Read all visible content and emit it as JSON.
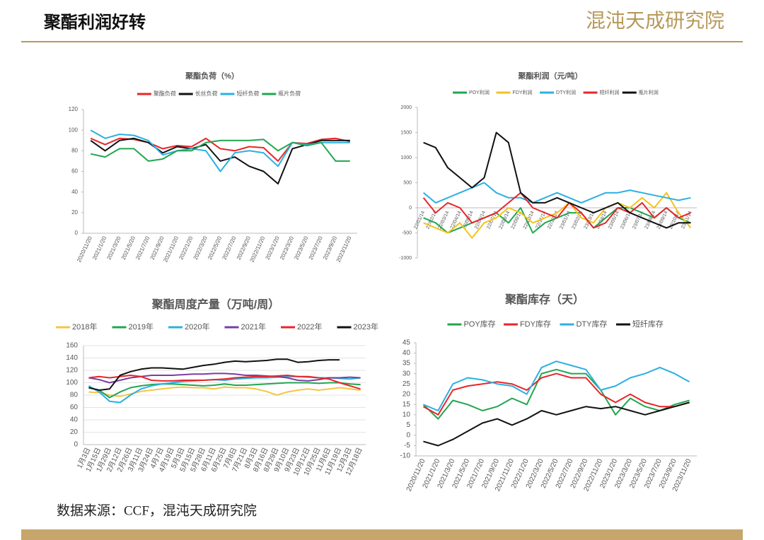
{
  "header": {
    "title": "聚酯利润好转",
    "brand": "混沌天成研究院"
  },
  "source": "数据来源：CCF，混沌天成研究院",
  "chart_data": [
    {
      "type": "line",
      "title": "聚酯负荷（%）",
      "grid": false,
      "categories": [
        "2020/11/20",
        "2021/1/20",
        "2021/3/20",
        "2021/5/20",
        "2021/7/20",
        "2021/9/20",
        "2021/11/20",
        "2022/1/20",
        "2022/3/20",
        "2022/5/20",
        "2022/7/20",
        "2022/9/20",
        "2022/11/20",
        "2023/1/20",
        "2023/3/20",
        "2023/5/20",
        "2023/7/20",
        "2023/9/20",
        "2023/11/20"
      ],
      "ylim": [
        0,
        120
      ],
      "yticks": [
        0,
        20,
        40,
        60,
        80,
        100,
        120
      ],
      "series": [
        {
          "name": "聚酯负荷",
          "color": "#e8262a",
          "values": [
            92,
            86,
            92,
            91,
            88,
            82,
            85,
            84,
            92,
            82,
            80,
            84,
            83,
            70,
            88,
            87,
            91,
            92,
            89
          ]
        },
        {
          "name": "长丝负荷",
          "color": "#111111",
          "values": [
            90,
            80,
            90,
            92,
            88,
            78,
            84,
            82,
            86,
            70,
            74,
            65,
            60,
            48,
            82,
            86,
            90,
            90,
            90
          ]
        },
        {
          "name": "短纤负荷",
          "color": "#2bb0e3",
          "values": [
            100,
            92,
            96,
            95,
            90,
            76,
            80,
            82,
            80,
            60,
            78,
            80,
            78,
            65,
            88,
            86,
            88,
            88,
            88
          ]
        },
        {
          "name": "瓶片负荷",
          "color": "#21a650",
          "values": [
            77,
            74,
            82,
            82,
            70,
            72,
            80,
            80,
            88,
            90,
            90,
            90,
            91,
            80,
            88,
            85,
            88,
            70,
            70
          ]
        }
      ]
    },
    {
      "type": "line",
      "title": "聚酯利润（元/吨）",
      "grid": false,
      "categories": [
        "22/01/14",
        "22/02/14",
        "22/03/14",
        "22/04/14",
        "22/05/14",
        "22/06/14",
        "22/07/14",
        "22/08/14",
        "22/09/14",
        "22/10/14",
        "22/11/14",
        "22/12/14",
        "23/01/14",
        "23/02/14",
        "23/03/14",
        "23/04/14",
        "23/05/14",
        "23/06/14",
        "23/07/14",
        "23/08/14",
        "23/09/14",
        "23/10/14",
        "23/11/14"
      ],
      "ylim": [
        -1000,
        2000
      ],
      "yticks": [
        -1000,
        -500,
        0,
        500,
        1000,
        1500,
        2000
      ],
      "series": [
        {
          "name": "POY利润",
          "color": "#21a650",
          "values": [
            -200,
            -300,
            -500,
            -400,
            -300,
            -200,
            -100,
            -300,
            0,
            -500,
            -300,
            -200,
            -100,
            -100,
            -400,
            -200,
            0,
            0,
            -100,
            -200,
            0,
            -200,
            -300
          ]
        },
        {
          "name": "FDY利润",
          "color": "#f5c21b",
          "values": [
            -300,
            -400,
            -500,
            -300,
            -600,
            -300,
            -200,
            0,
            -100,
            -300,
            -200,
            -100,
            100,
            -200,
            -300,
            0,
            100,
            0,
            200,
            0,
            300,
            -100,
            -400
          ]
        },
        {
          "name": "DTY利润",
          "color": "#2bb0e3",
          "values": [
            300,
            100,
            200,
            300,
            400,
            500,
            300,
            200,
            200,
            100,
            200,
            300,
            200,
            100,
            200,
            300,
            300,
            350,
            300,
            250,
            200,
            150,
            200
          ]
        },
        {
          "name": "短纤利润",
          "color": "#e8262a",
          "values": [
            200,
            -100,
            100,
            0,
            -300,
            -200,
            -100,
            100,
            300,
            0,
            -100,
            -200,
            100,
            -100,
            -400,
            -300,
            0,
            -100,
            100,
            -200,
            0,
            -200,
            -100
          ]
        },
        {
          "name": "瓶片利润",
          "color": "#111111",
          "values": [
            1300,
            1200,
            800,
            600,
            400,
            600,
            1500,
            1300,
            300,
            100,
            100,
            200,
            100,
            0,
            -100,
            0,
            100,
            -100,
            -200,
            -300,
            -400,
            -300,
            -300
          ]
        }
      ]
    },
    {
      "type": "line",
      "title": "聚酯周度产量（万吨/周）",
      "grid": true,
      "categories": [
        "1月3日",
        "1月15日",
        "1月29日",
        "2月12日",
        "2月26日",
        "3月11日",
        "3月24日",
        "4月7日",
        "4月19日",
        "5月3日",
        "5月15日",
        "5月28日",
        "6月11日",
        "6月25日",
        "7月8日",
        "7月21日",
        "8月3日",
        "8月16日",
        "8月29日",
        "9月10日",
        "9月23日",
        "10月12日",
        "10月25日",
        "11月6日",
        "11月19日",
        "12月3日",
        "12月18日"
      ],
      "ylim": [
        0,
        160
      ],
      "yticks": [
        0,
        20,
        40,
        60,
        80,
        100,
        120,
        140,
        160
      ],
      "series": [
        {
          "name": "2018年",
          "color": "#f5c542",
          "values": [
            85,
            84,
            80,
            78,
            82,
            86,
            88,
            90,
            92,
            93,
            92,
            92,
            90,
            93,
            92,
            92,
            90,
            86,
            80,
            85,
            88,
            90,
            88,
            90,
            92,
            90,
            88
          ]
        },
        {
          "name": "2019年",
          "color": "#21a650",
          "values": [
            92,
            88,
            76,
            85,
            92,
            95,
            97,
            98,
            98,
            97,
            96,
            95,
            96,
            98,
            96,
            96,
            97,
            98,
            99,
            100,
            100,
            100,
            99,
            100,
            100,
            98,
            97
          ]
        },
        {
          "name": "2020年",
          "color": "#2bb0e3",
          "values": [
            95,
            85,
            70,
            68,
            80,
            90,
            95,
            98,
            100,
            102,
            103,
            104,
            105,
            104,
            106,
            107,
            108,
            108,
            109,
            110,
            110,
            109,
            108,
            108,
            107,
            106,
            108
          ]
        },
        {
          "name": "2021年",
          "color": "#7a3fa0",
          "values": [
            108,
            105,
            100,
            104,
            108,
            110,
            112,
            112,
            112,
            113,
            114,
            114,
            115,
            115,
            114,
            112,
            112,
            111,
            110,
            108,
            104,
            103,
            105,
            108,
            108,
            109,
            108
          ]
        },
        {
          "name": "2022年",
          "color": "#e8262a",
          "values": [
            108,
            110,
            108,
            110,
            112,
            110,
            104,
            103,
            103,
            104,
            104,
            104,
            105,
            106,
            108,
            109,
            110,
            110,
            111,
            112,
            110,
            110,
            108,
            106,
            100,
            95,
            90
          ]
        },
        {
          "name": "2023年",
          "color": "#111111",
          "values": [
            92,
            88,
            90,
            112,
            118,
            122,
            124,
            124,
            123,
            122,
            125,
            128,
            130,
            133,
            135,
            134,
            135,
            136,
            138,
            138,
            133,
            134,
            136,
            137,
            137,
            null,
            null
          ]
        }
      ]
    },
    {
      "type": "line",
      "title": "聚酯库存（天）",
      "grid": false,
      "categories": [
        "2020/11/20",
        "2021/1/20",
        "2021/3/20",
        "2021/5/20",
        "2021/7/20",
        "2021/9/20",
        "2021/11/20",
        "2022/1/20",
        "2022/3/20",
        "2022/5/20",
        "2022/7/20",
        "2022/9/20",
        "2022/11/20",
        "2023/1/20",
        "2023/3/20",
        "2023/5/20",
        "2023/7/20",
        "2023/9/20",
        "2023/11/20"
      ],
      "ylim": [
        -10,
        45
      ],
      "yticks": [
        -10,
        -5,
        0,
        5,
        10,
        15,
        20,
        25,
        30,
        35,
        40,
        45
      ],
      "series": [
        {
          "name": "POY库存",
          "color": "#21a650",
          "values": [
            15,
            8,
            17,
            15,
            12,
            14,
            18,
            15,
            30,
            32,
            30,
            30,
            22,
            10,
            18,
            14,
            12,
            15,
            17
          ]
        },
        {
          "name": "FDY库存",
          "color": "#e8262a",
          "values": [
            14,
            10,
            22,
            24,
            25,
            26,
            25,
            22,
            28,
            30,
            28,
            28,
            20,
            16,
            20,
            16,
            14,
            14,
            16
          ]
        },
        {
          "name": "DTY库存",
          "color": "#2bb0e3",
          "values": [
            15,
            12,
            25,
            28,
            27,
            25,
            24,
            20,
            33,
            36,
            34,
            32,
            22,
            24,
            28,
            30,
            33,
            30,
            26
          ]
        },
        {
          "name": "短纤库存",
          "color": "#111111",
          "values": [
            -3,
            -5,
            -2,
            2,
            6,
            8,
            5,
            8,
            12,
            10,
            12,
            14,
            13,
            14,
            12,
            10,
            12,
            14,
            16
          ]
        }
      ]
    }
  ]
}
